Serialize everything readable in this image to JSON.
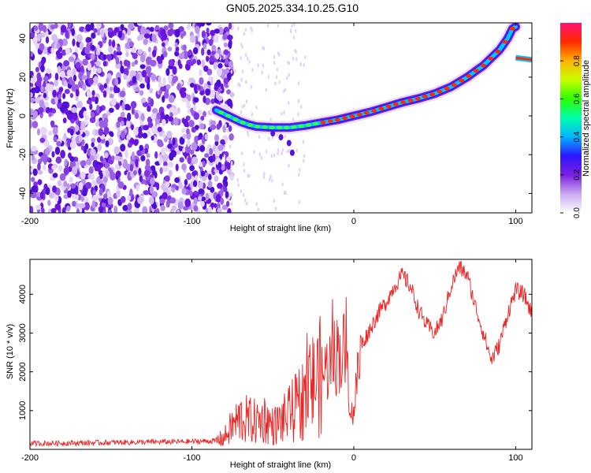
{
  "title": "GN05.2025.334.10.25.G10",
  "chart_data": [
    {
      "type": "heatmap",
      "xlabel": "Height of straight line (km)",
      "ylabel": "Frequency (Hz)",
      "xlim": [
        -200,
        110
      ],
      "ylim": [
        -50,
        48
      ],
      "xticks": [
        -200,
        -100,
        0,
        100
      ],
      "yticks": [
        -40,
        -20,
        0,
        20,
        40
      ],
      "colorbar": {
        "label": "Normalized spectral amplitude",
        "range": [
          0,
          1
        ],
        "ticks": [
          "0.0",
          "0.2",
          "0.4",
          "0.6",
          "0.8"
        ],
        "colors": [
          "#ffffff",
          "#c9a8f0",
          "#7b1fe0",
          "#2d16ff",
          "#00b4ff",
          "#00ffaa",
          "#2cff00",
          "#c8ff00",
          "#ffb400",
          "#ff2a00",
          "#ff1472"
        ]
      },
      "ridge": {
        "x": [
          -85,
          -80,
          -75,
          -70,
          -65,
          -60,
          -50,
          -40,
          -30,
          -20,
          -10,
          0,
          10,
          20,
          30,
          40,
          50,
          60,
          70,
          80,
          90,
          95,
          98,
          100
        ],
        "y": [
          3,
          1,
          -1,
          -3,
          -4.5,
          -5.5,
          -6,
          -6,
          -5,
          -3.5,
          -2,
          0,
          2,
          4.5,
          7,
          9,
          11.5,
          15,
          20,
          26,
          34,
          40,
          45,
          46
        ]
      },
      "ridge_segment_2": {
        "x": [
          100,
          110
        ],
        "y": [
          30,
          29
        ]
      },
      "noise_region_x": [
        -200,
        -80
      ]
    },
    {
      "type": "line",
      "xlabel": "Height of straight line (km)",
      "ylabel": "SNR (10 * v/v)",
      "xlim": [
        -200,
        110
      ],
      "ylim": [
        0,
        4900
      ],
      "xticks": [
        -200,
        -100,
        0,
        100
      ],
      "yticks": [
        1000,
        2000,
        3000,
        4000
      ],
      "series": [
        {
          "name": "SNR",
          "color": "#ee2222",
          "x": [
            -200,
            -180,
            -160,
            -140,
            -120,
            -100,
            -85,
            -80,
            -75,
            -70,
            -65,
            -60,
            -55,
            -50,
            -45,
            -40,
            -35,
            -30,
            -25,
            -20,
            -15,
            -10,
            -5,
            -1,
            5,
            10,
            15,
            20,
            25,
            30,
            35,
            40,
            45,
            50,
            55,
            60,
            65,
            70,
            75,
            80,
            85,
            90,
            95,
            100,
            105,
            110
          ],
          "values": [
            150,
            160,
            170,
            180,
            190,
            200,
            220,
            300,
            600,
            800,
            750,
            700,
            800,
            600,
            700,
            900,
            1100,
            1400,
            1700,
            1900,
            2200,
            2500,
            2500,
            800,
            2700,
            3100,
            3500,
            3800,
            4200,
            4500,
            4200,
            3600,
            3200,
            3000,
            3400,
            4200,
            4700,
            4500,
            3700,
            3000,
            2300,
            2700,
            3500,
            4100,
            4000,
            3500
          ]
        }
      ]
    }
  ]
}
